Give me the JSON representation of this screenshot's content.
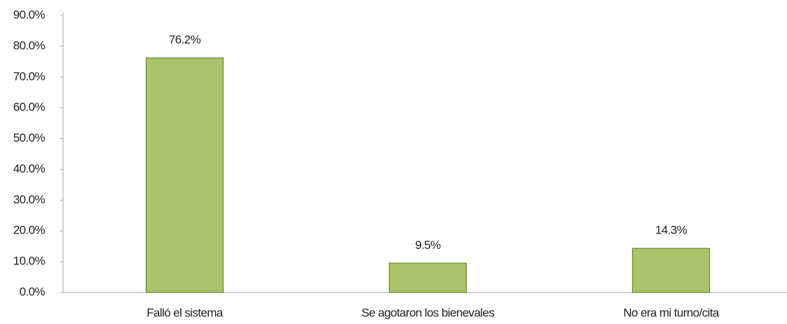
{
  "chart_data": {
    "type": "bar",
    "categories": [
      "Falló el sistema",
      "Se agotaron los bienevales",
      "No era mi turno/cita"
    ],
    "values": [
      76.2,
      9.5,
      14.3
    ],
    "value_labels": [
      "76.2%",
      "9.5%",
      "14.3%"
    ],
    "color": "#a9c46b",
    "ylim": [
      0,
      90
    ],
    "yticks": [
      {
        "value": 0,
        "label": "0.0%"
      },
      {
        "value": 10,
        "label": "10.0%"
      },
      {
        "value": 20,
        "label": "20.0%"
      },
      {
        "value": 30,
        "label": "30.0%"
      },
      {
        "value": 40,
        "label": "40.0%"
      },
      {
        "value": 50,
        "label": "50.0%"
      },
      {
        "value": 60,
        "label": "60.0%"
      },
      {
        "value": 70,
        "label": "70.0%"
      },
      {
        "value": 80,
        "label": "80.0%"
      },
      {
        "value": 90,
        "label": "90.0%"
      }
    ],
    "grid": false
  }
}
